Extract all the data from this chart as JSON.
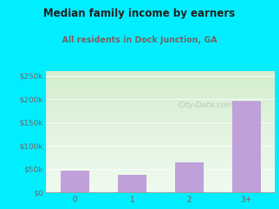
{
  "title": "Median family income by earners",
  "subtitle": "All residents in Dock Junction, GA",
  "categories": [
    "0",
    "1",
    "2",
    "3+"
  ],
  "values": [
    46000,
    37000,
    65000,
    196000
  ],
  "bar_color": "#c0a0d8",
  "background_outer": "#00eeff",
  "background_inner_top": "#d4eece",
  "background_inner_bottom": "#f0faf0",
  "title_color": "#222222",
  "subtitle_color": "#7a6060",
  "tick_color": "#7a6060",
  "ytick_labels": [
    "$0",
    "$50k",
    "$100k",
    "$150k",
    "$200k",
    "$250k"
  ],
  "ytick_values": [
    0,
    50000,
    100000,
    150000,
    200000,
    250000
  ],
  "ylim": [
    0,
    260000
  ],
  "watermark": "City-Data.com"
}
